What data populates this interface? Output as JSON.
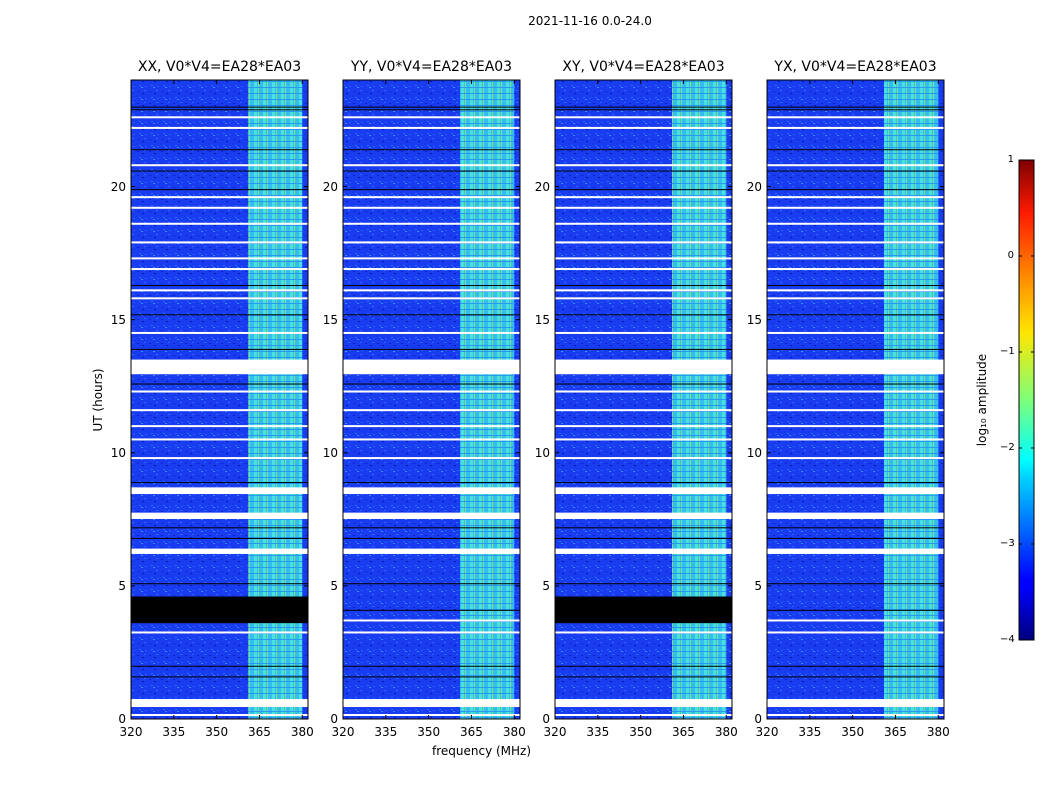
{
  "chart_data": {
    "type": "heatmap",
    "suptitle": "2021-11-16 0.0-24.0",
    "xlabel": "frequency (MHz)",
    "ylabel": "UT (hours)",
    "xlim": [
      320,
      382
    ],
    "ylim": [
      0,
      24
    ],
    "x_ticks": [
      "320",
      "335",
      "350",
      "365",
      "380"
    ],
    "x_tick_values": [
      320,
      335,
      350,
      365,
      380
    ],
    "y_ticks": [
      "0",
      "5",
      "10",
      "15",
      "20"
    ],
    "y_tick_values": [
      0,
      5,
      10,
      15,
      20
    ],
    "rfi_band_mhz": [
      361,
      380
    ],
    "panels": [
      {
        "title": "XX, V0*V4=EA28*EA03",
        "blanked_hours": [
          3.6,
          4.6
        ]
      },
      {
        "title": "YY, V0*V4=EA28*EA03",
        "blanked_hours": null
      },
      {
        "title": "XY, V0*V4=EA28*EA03",
        "blanked_hours": [
          3.6,
          4.6
        ]
      },
      {
        "title": "YX, V0*V4=EA28*EA03",
        "blanked_hours": null
      }
    ],
    "flagged_white_hours": [
      0.15,
      0.5,
      0.6,
      3.25,
      3.7,
      6.25,
      6.35,
      7.55,
      7.7,
      8.5,
      8.65,
      9.8,
      10.5,
      11.0,
      11.6,
      12.3,
      13.0,
      13.2,
      13.4,
      14.5,
      15.8,
      16.1,
      16.9,
      17.3,
      17.9,
      18.6,
      19.2,
      19.6,
      20.8,
      22.2,
      22.6
    ],
    "flagged_black_hours": [
      1.6,
      2.0,
      4.1,
      5.1,
      6.8,
      7.2,
      8.9,
      12.6,
      13.9,
      15.2,
      16.3,
      19.9,
      20.6,
      21.4,
      22.9,
      23.0
    ],
    "colorbar": {
      "label": "log₁₀ amplitude",
      "range": [
        -4,
        1
      ],
      "ticks": [
        "−4",
        "−3",
        "−2",
        "−1",
        "0",
        "1"
      ],
      "tick_values": [
        -4,
        -3,
        -2,
        -1,
        0,
        1
      ],
      "colormap": "jet"
    },
    "colors": {
      "background_blue": "#1a3cf0",
      "rfi_cyan": "#4cf0d8",
      "blanked": "#000000",
      "flag_white": "#ffffff"
    }
  }
}
